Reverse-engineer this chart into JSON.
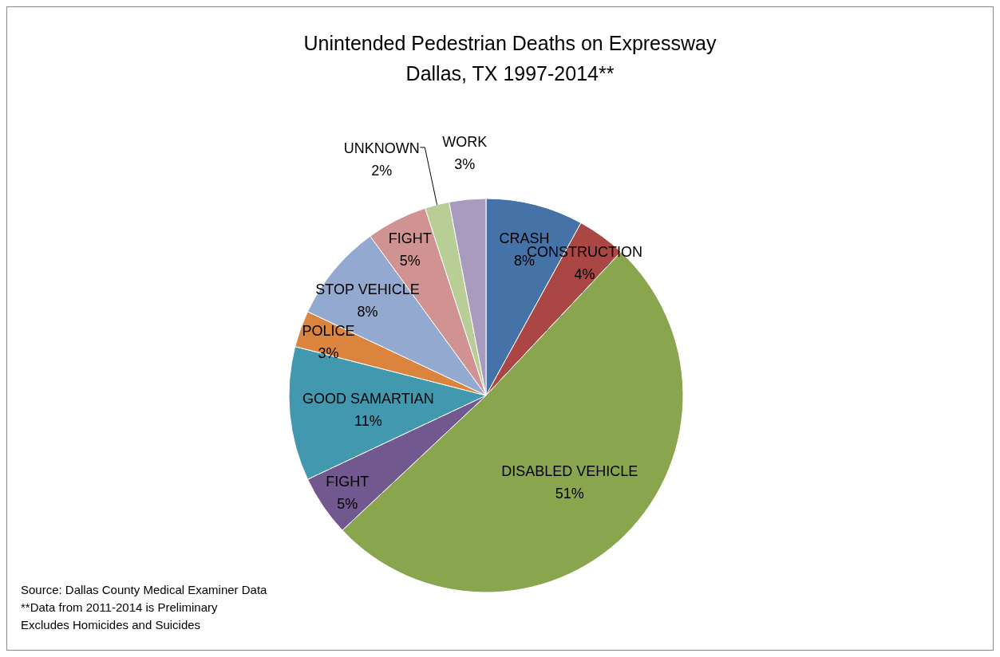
{
  "chart_data": {
    "type": "pie",
    "title": "Unintended Pedestrian Deaths on Expressway",
    "subtitle": "Dallas, TX 1997-2014**",
    "categories": [
      "CRASH",
      "CONSTRUCTION",
      "DISABLED VEHICLE",
      "FIGHT",
      "GOOD SAMARTIAN",
      "POLICE",
      "STOP VEHICLE",
      "FIGHT",
      "UNKNOWN",
      "WORK"
    ],
    "values": [
      8,
      4,
      51,
      5,
      11,
      3,
      8,
      5,
      2,
      3
    ],
    "colors": [
      "#4572a7",
      "#aa4643",
      "#89a54e",
      "#71588f",
      "#4198af",
      "#db843d",
      "#93a9cf",
      "#d19392",
      "#b9cd96",
      "#a99bbd"
    ],
    "value_labels": [
      "8%",
      "4%",
      "51%",
      "5%",
      "11%",
      "3%",
      "8%",
      "5%",
      "2%",
      "3%"
    ],
    "annotations": [
      "Source: Dallas County Medical Examiner Data",
      "**Data from 2011-2014 is Preliminary",
      "Excludes Homicides and Suicides"
    ]
  }
}
